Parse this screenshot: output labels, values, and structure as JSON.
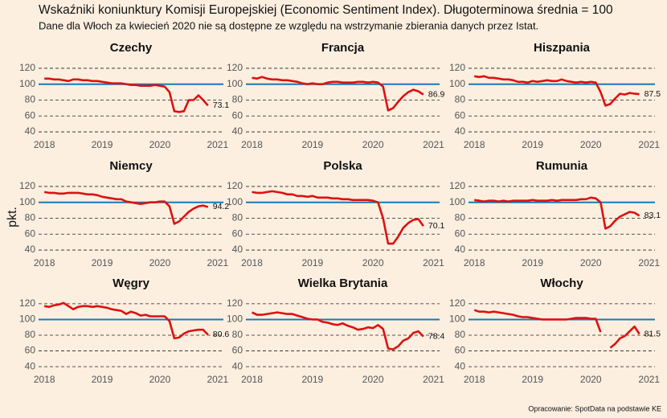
{
  "chart_data": {
    "type": "line",
    "title": "Wskaźniki koniunktury Komisji Europejskiej (Economic Sentiment Index). Długoterminowa średnia = 100",
    "subtitle": "Dane dla Włoch za kwiecień 2020 nie są dostępne ze względu na wstrzymanie zbierania danych przez Istat.",
    "y_label": "pkt.",
    "source": "Opracowanie: SpotData na podstawie KE",
    "reference_line": 100,
    "reference_color": "#1a78b4",
    "grid": true,
    "x": [
      2018,
      2018.083,
      2018.167,
      2018.25,
      2018.333,
      2018.417,
      2018.5,
      2018.583,
      2018.667,
      2018.75,
      2018.833,
      2018.917,
      2019,
      2019.083,
      2019.167,
      2019.25,
      2019.333,
      2019.417,
      2019.5,
      2019.583,
      2019.667,
      2019.75,
      2019.833,
      2019.917,
      2020,
      2020.083,
      2020.167,
      2020.25,
      2020.333,
      2020.417,
      2020.5,
      2020.583,
      2020.667,
      2020.75,
      2020.833
    ],
    "xlim": [
      2017.9,
      2021.1
    ],
    "xticks": [
      2018,
      2019,
      2020,
      2021
    ],
    "ylim": [
      35,
      125
    ],
    "yticks": [
      40,
      60,
      80,
      100,
      120
    ],
    "series": [
      {
        "name": "Czechy",
        "color": "#dd1111",
        "values": [
          107,
          107,
          106,
          106,
          105,
          104,
          106,
          106,
          105,
          105,
          104,
          104,
          103,
          102,
          101,
          101,
          101,
          100,
          99,
          99,
          98,
          98,
          98,
          99,
          98,
          97,
          90,
          66,
          65,
          66,
          80,
          80,
          86,
          80,
          73.1
        ]
      },
      {
        "name": "Francja",
        "color": "#dd1111",
        "values": [
          108,
          107,
          109,
          107,
          106,
          106,
          105,
          105,
          104,
          103,
          101,
          100,
          101,
          100,
          100,
          102,
          103,
          103,
          102,
          102,
          102,
          103,
          103,
          102,
          103,
          102,
          97,
          67,
          70,
          78,
          85,
          90,
          93,
          91,
          86.9
        ]
      },
      {
        "name": "Hiszpania",
        "color": "#dd1111",
        "values": [
          110,
          109,
          110,
          108,
          108,
          107,
          106,
          106,
          105,
          103,
          103,
          102,
          104,
          103,
          104,
          105,
          104,
          104,
          106,
          104,
          103,
          102,
          103,
          102,
          103,
          102,
          90,
          73,
          75,
          82,
          88,
          87,
          89,
          88,
          87.5
        ]
      },
      {
        "name": "Niemcy",
        "color": "#dd1111",
        "values": [
          113,
          112,
          112,
          111,
          111,
          112,
          112,
          112,
          111,
          110,
          110,
          109,
          107,
          106,
          105,
          104,
          104,
          101,
          100,
          99,
          98,
          99,
          100,
          100,
          101,
          101,
          95,
          73,
          76,
          82,
          88,
          92,
          95,
          96,
          94.2
        ]
      },
      {
        "name": "Polska",
        "color": "#dd1111",
        "values": [
          113,
          112,
          112,
          113,
          114,
          113,
          112,
          110,
          110,
          108,
          108,
          107,
          108,
          106,
          106,
          106,
          105,
          105,
          104,
          104,
          103,
          103,
          103,
          103,
          102,
          100,
          80,
          48,
          48,
          57,
          68,
          74,
          78,
          79,
          70.1
        ]
      },
      {
        "name": "Rumunia",
        "color": "#dd1111",
        "values": [
          103,
          102,
          101,
          102,
          102,
          101,
          102,
          101,
          102,
          102,
          102,
          102,
          103,
          102,
          102,
          102,
          103,
          102,
          103,
          103,
          103,
          103,
          104,
          104,
          106,
          105,
          100,
          67,
          70,
          77,
          82,
          85,
          88,
          87,
          83.1
        ]
      },
      {
        "name": "Węgry",
        "color": "#dd1111",
        "values": [
          117,
          116,
          118,
          119,
          121,
          117,
          113,
          116,
          117,
          117,
          116,
          117,
          116,
          115,
          113,
          112,
          111,
          107,
          110,
          108,
          105,
          106,
          104,
          104,
          104,
          104,
          98,
          76,
          77,
          82,
          85,
          86,
          87,
          87,
          80.6
        ]
      },
      {
        "name": "Wielka Brytania",
        "color": "#dd1111",
        "values": [
          109,
          106,
          106,
          107,
          108,
          109,
          108,
          107,
          107,
          105,
          103,
          101,
          100,
          100,
          97,
          96,
          94,
          93,
          95,
          92,
          90,
          87,
          88,
          90,
          89,
          93,
          88,
          63,
          62,
          66,
          73,
          76,
          83,
          85,
          78.4
        ]
      },
      {
        "name": "Włochy",
        "color": "#dd1111",
        "values": [
          112,
          110,
          110,
          109,
          110,
          109,
          108,
          107,
          106,
          104,
          103,
          103,
          102,
          101,
          100,
          100,
          100,
          100,
          100,
          100,
          101,
          102,
          102,
          102,
          101,
          101,
          84,
          null,
          64,
          69,
          76,
          79,
          85,
          91,
          81.5
        ]
      }
    ]
  }
}
